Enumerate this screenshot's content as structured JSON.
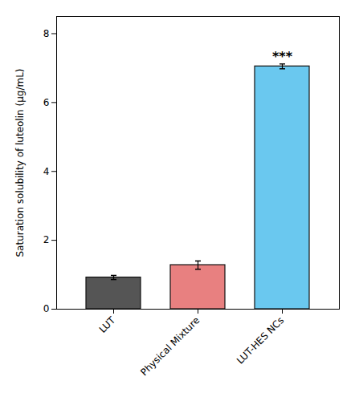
{
  "chart_data": {
    "type": "bar",
    "categories": [
      "LUT",
      "Physical Mixture",
      "LUT-HES NCs"
    ],
    "values": [
      0.92,
      1.28,
      7.05
    ],
    "errors": [
      0.06,
      0.12,
      0.07
    ],
    "colors": [
      "#555555",
      "#E88080",
      "#6AC8EF"
    ],
    "ylabel": "Saturation solubility of luteolin (μg/mL)",
    "ylim": [
      0,
      8.5
    ],
    "yticks": [
      0,
      2,
      4,
      6,
      8
    ],
    "grid": false,
    "annotations": [
      {
        "text": "***",
        "x": "LUT-HES NCs",
        "y": 7.2
      }
    ]
  }
}
